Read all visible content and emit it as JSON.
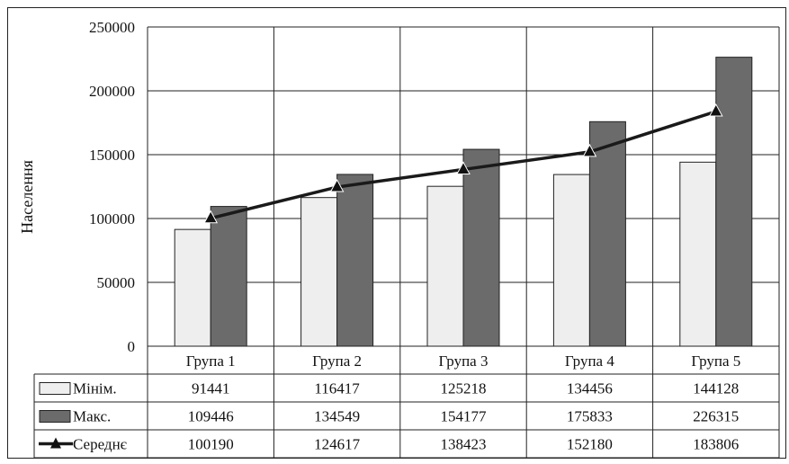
{
  "chart_data": {
    "type": "bar",
    "ylabel": "Населення",
    "ylim": [
      0,
      250000
    ],
    "yticks": [
      "0",
      "50000",
      "100000",
      "150000",
      "200000",
      "250000"
    ],
    "grid": true,
    "categories": [
      "Група 1",
      "Група 2",
      "Група 3",
      "Група 4",
      "Група 5"
    ],
    "series": [
      {
        "name": "Мінім.",
        "type": "bar",
        "color": "#eeeeee",
        "values": [
          91441,
          116417,
          125218,
          134456,
          144128
        ]
      },
      {
        "name": "Макс.",
        "type": "bar",
        "color": "#6b6b6b",
        "values": [
          109446,
          134549,
          154177,
          175833,
          226315
        ]
      },
      {
        "name": "Середнє",
        "type": "line",
        "color": "#1a1a1a",
        "marker": "triangle",
        "values": [
          100190,
          124617,
          138423,
          152180,
          183806
        ]
      }
    ],
    "legend_placement": "data-table"
  },
  "table_cells": [
    [
      "91441",
      "116417",
      "125218",
      "134456",
      "144128"
    ],
    [
      "109446",
      "134549",
      "154177",
      "175833",
      "226315"
    ],
    [
      "100190",
      "124617",
      "138423",
      "152180",
      "183806"
    ]
  ]
}
